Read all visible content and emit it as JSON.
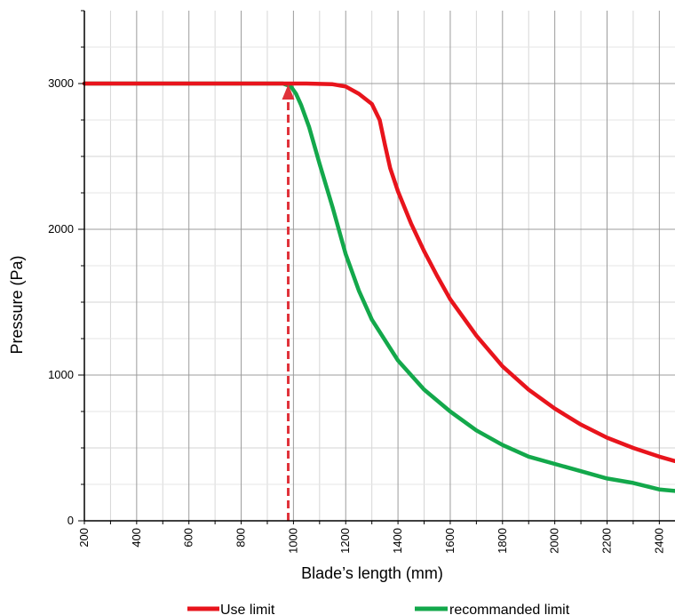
{
  "chart_data": {
    "type": "line",
    "title": "",
    "xlabel": "Blade’s length (mm)",
    "ylabel": "Pressure (Pa)",
    "xlim": [
      200,
      2460
    ],
    "ylim": [
      0,
      3500
    ],
    "x_ticks": [
      "200",
      "400",
      "600",
      "800",
      "1000",
      "1200",
      "1400",
      "1600",
      "1800",
      "2000",
      "2200",
      "2400"
    ],
    "y_ticks": [
      "0",
      "1000",
      "2000",
      "3000"
    ],
    "grid": true,
    "legend_position": "bottom",
    "series": [
      {
        "name": "Use limit",
        "color": "#e8141c",
        "points": [
          [
            200,
            3000
          ],
          [
            900,
            3000
          ],
          [
            980,
            3000
          ],
          [
            1050,
            3000
          ],
          [
            1150,
            2995
          ],
          [
            1200,
            2980
          ],
          [
            1250,
            2930
          ],
          [
            1300,
            2860
          ],
          [
            1330,
            2750
          ],
          [
            1350,
            2580
          ],
          [
            1370,
            2420
          ],
          [
            1400,
            2260
          ],
          [
            1450,
            2040
          ],
          [
            1500,
            1850
          ],
          [
            1550,
            1680
          ],
          [
            1600,
            1520
          ],
          [
            1700,
            1270
          ],
          [
            1800,
            1060
          ],
          [
            1900,
            900
          ],
          [
            2000,
            770
          ],
          [
            2100,
            660
          ],
          [
            2200,
            570
          ],
          [
            2300,
            500
          ],
          [
            2400,
            440
          ],
          [
            2460,
            410
          ]
        ]
      },
      {
        "name": "recommanded limit",
        "color": "#13a84b",
        "points": [
          [
            200,
            3000
          ],
          [
            850,
            3000
          ],
          [
            960,
            3000
          ],
          [
            990,
            2980
          ],
          [
            1010,
            2930
          ],
          [
            1030,
            2850
          ],
          [
            1060,
            2700
          ],
          [
            1100,
            2450
          ],
          [
            1150,
            2150
          ],
          [
            1200,
            1830
          ],
          [
            1250,
            1580
          ],
          [
            1300,
            1380
          ],
          [
            1400,
            1100
          ],
          [
            1500,
            900
          ],
          [
            1600,
            750
          ],
          [
            1700,
            620
          ],
          [
            1800,
            520
          ],
          [
            1900,
            440
          ],
          [
            2000,
            390
          ],
          [
            2100,
            340
          ],
          [
            2200,
            290
          ],
          [
            2300,
            260
          ],
          [
            2400,
            215
          ],
          [
            2460,
            205
          ]
        ]
      }
    ],
    "annotations": [
      {
        "type": "dashed-arrow",
        "color": "#e0323a",
        "x": 980,
        "y_from": 0,
        "y_to": 3000
      }
    ]
  }
}
